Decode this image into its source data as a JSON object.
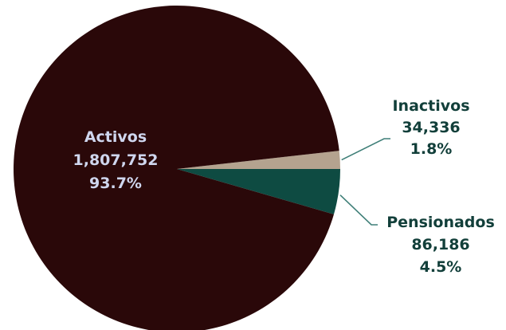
{
  "chart_data": {
    "type": "pie",
    "slices": [
      {
        "label": "Activos",
        "value": 1807752,
        "value_text": "1,807,752",
        "percent": 93.7,
        "percent_text": "93.7%",
        "color": "#2a0809"
      },
      {
        "label": "Inactivos",
        "value": 34336,
        "value_text": "34,336",
        "percent": 1.8,
        "percent_text": "1.8%",
        "color": "#b4a38f"
      },
      {
        "label": "Pensionados",
        "value": 86186,
        "value_text": "86,186",
        "percent": 4.5,
        "percent_text": "4.5%",
        "color": "#0e4b42"
      }
    ],
    "label_color_inside": "#cfd6ee",
    "label_color_outside": "#123f3a",
    "leader_line_color": "#3f7f78"
  }
}
